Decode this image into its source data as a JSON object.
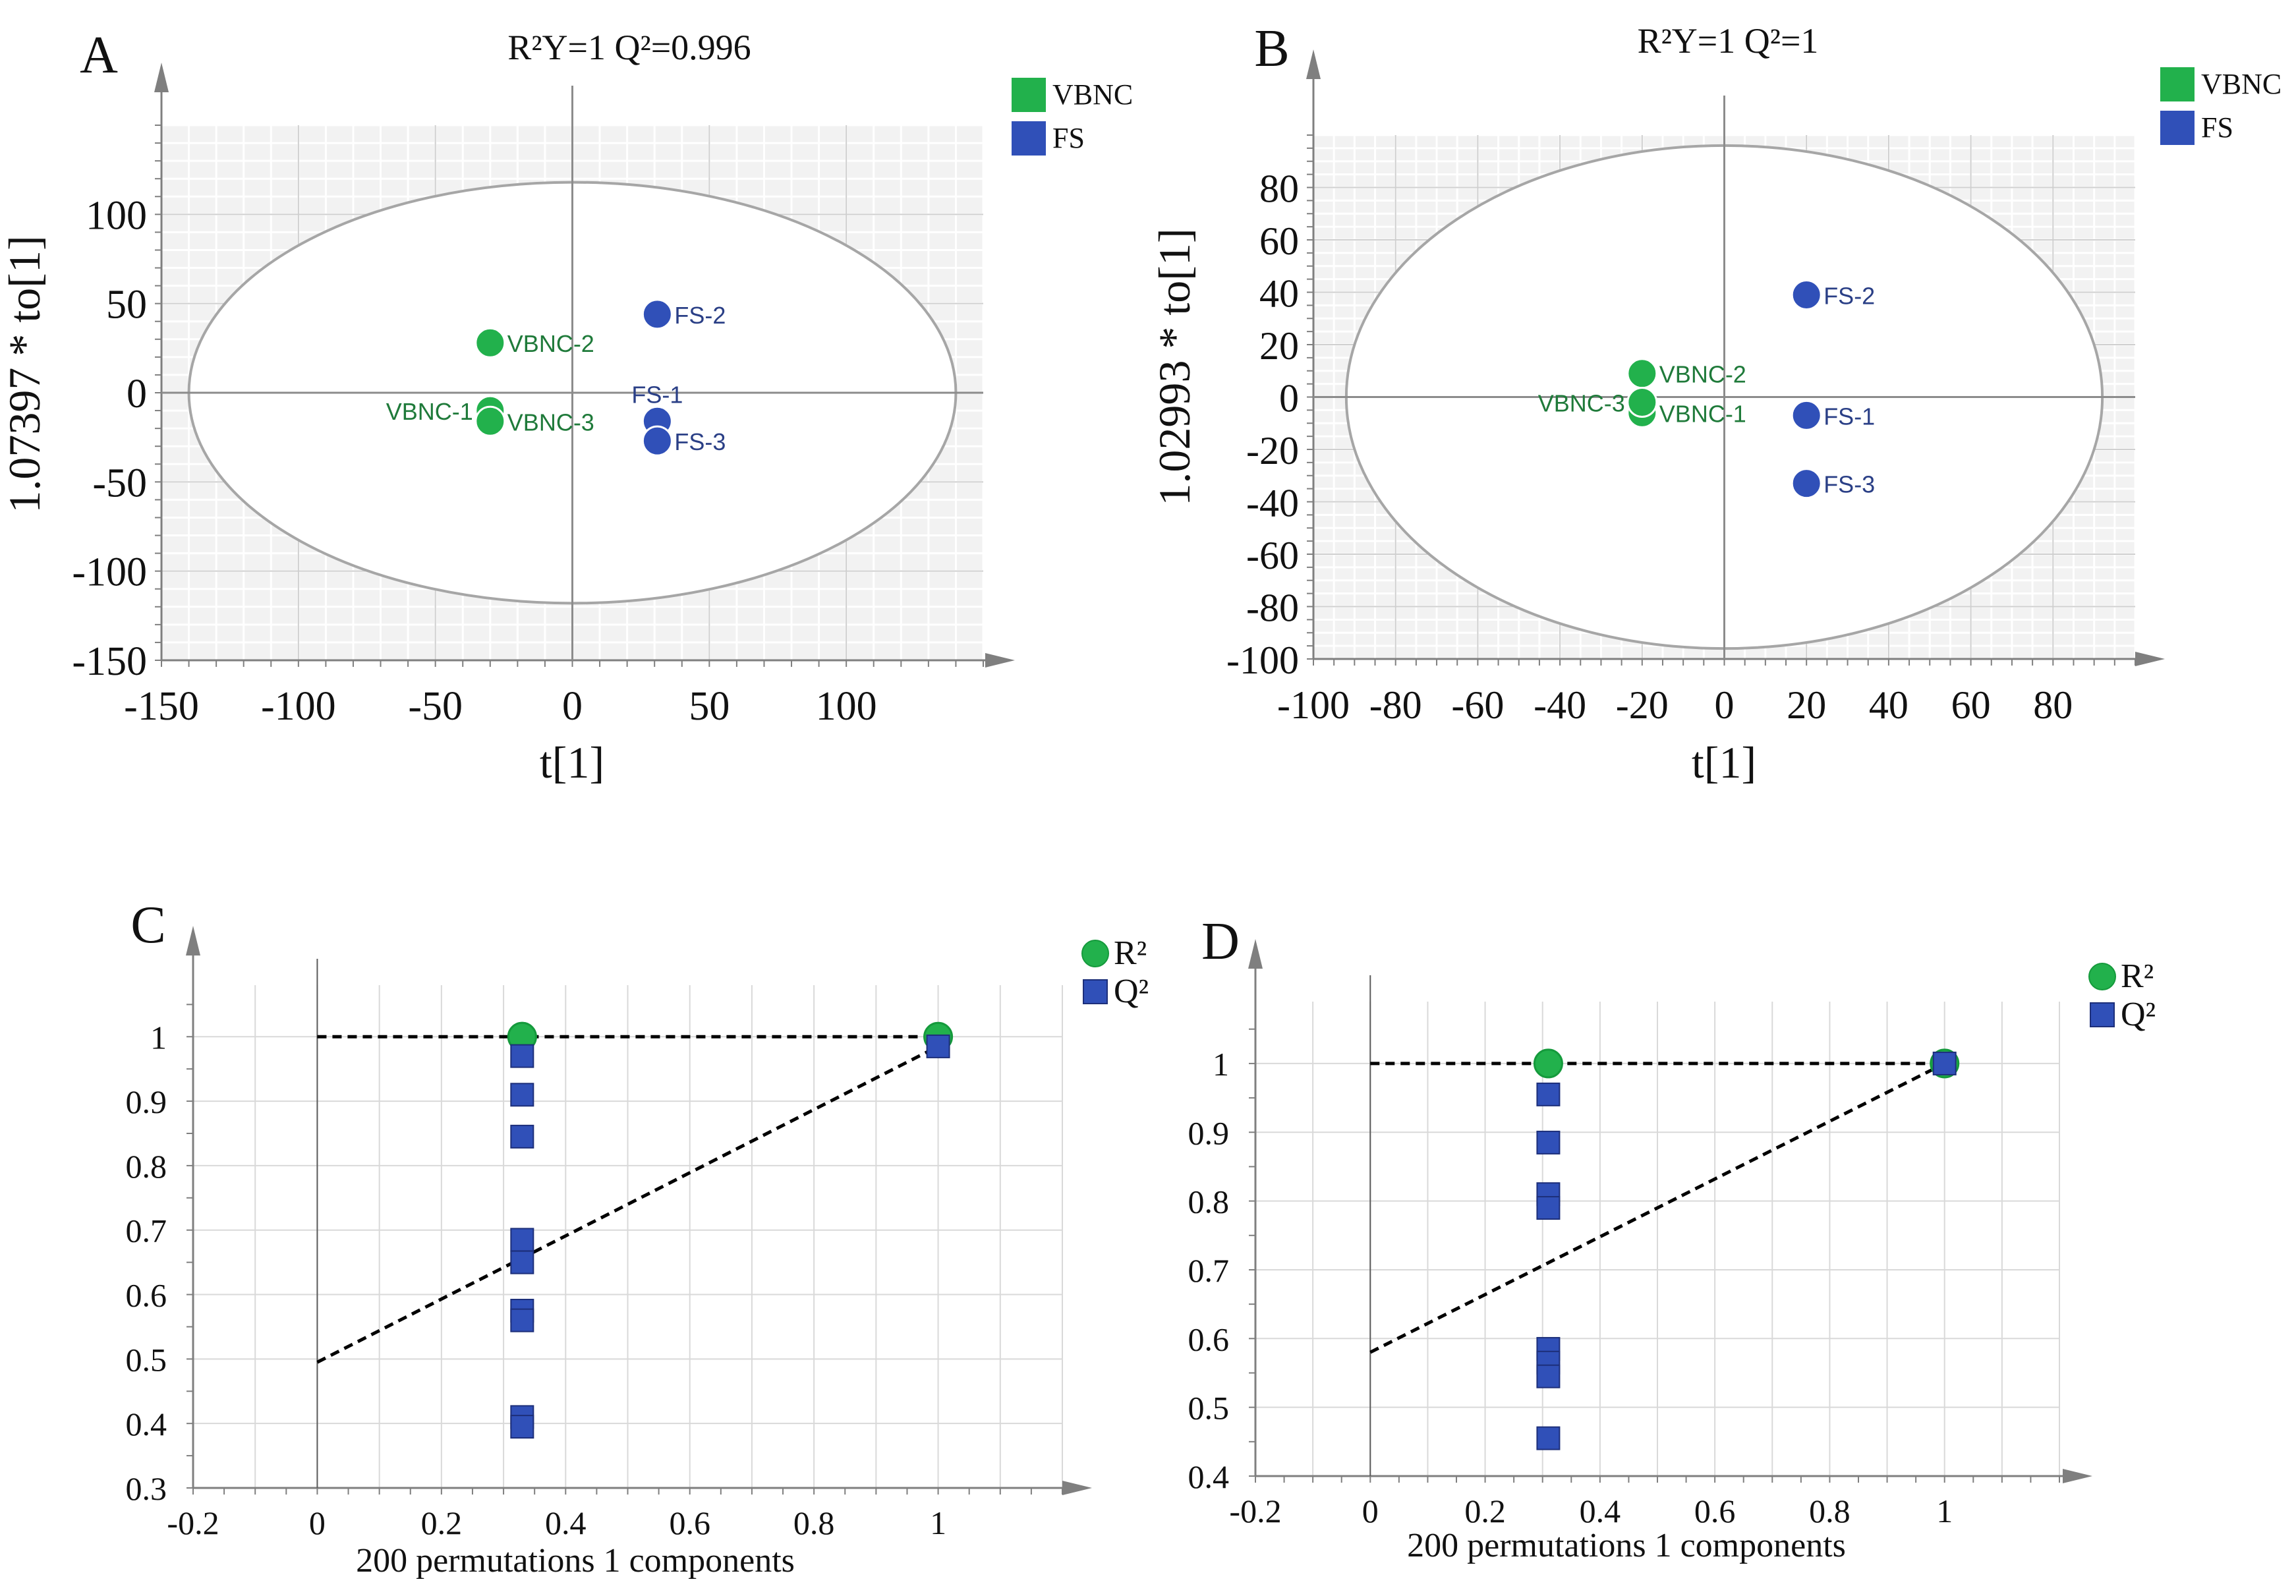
{
  "chart_data": [
    {
      "id": "A",
      "type": "scatter",
      "panel_label": "A",
      "title": "R²Y=1   Q²=0.996",
      "xlabel": "t[1]",
      "ylabel": "1.07397 * to[1]",
      "xlim": [
        -150,
        150
      ],
      "ylim": [
        -150,
        150
      ],
      "xticks": [
        -150,
        -100,
        -50,
        0,
        50,
        100
      ],
      "yticks": [
        -150,
        -100,
        -50,
        0,
        50,
        100
      ],
      "grid": true,
      "ellipse": {
        "rx": 140,
        "ry": 118
      },
      "legend": [
        {
          "label": "VBNC",
          "color": "#22b14c",
          "marker": "square"
        },
        {
          "label": "FS",
          "color": "#3050b8",
          "marker": "square"
        }
      ],
      "series": [
        {
          "name": "VBNC",
          "color": "#22b14c",
          "points": [
            {
              "label": "VBNC-1",
              "x": -30,
              "y": -10,
              "label_pos": "left"
            },
            {
              "label": "VBNC-2",
              "x": -30,
              "y": 28,
              "label_pos": "right"
            },
            {
              "label": "VBNC-3",
              "x": -30,
              "y": -16,
              "label_pos": "right"
            }
          ]
        },
        {
          "name": "FS",
          "color": "#3050b8",
          "points": [
            {
              "label": "FS-1",
              "x": 31,
              "y": -16,
              "label_pos": "above"
            },
            {
              "label": "FS-2",
              "x": 31,
              "y": 44,
              "label_pos": "right"
            },
            {
              "label": "FS-3",
              "x": 31,
              "y": -27,
              "label_pos": "right"
            }
          ]
        }
      ]
    },
    {
      "id": "B",
      "type": "scatter",
      "panel_label": "B",
      "title": "R²Y=1   Q²=1",
      "xlabel": "t[1]",
      "ylabel": "1.02993 * to[1]",
      "xlim": [
        -100,
        100
      ],
      "ylim": [
        -100,
        100
      ],
      "xticks": [
        -100,
        -80,
        -60,
        -40,
        -20,
        0,
        20,
        40,
        60,
        80
      ],
      "yticks": [
        -100,
        -80,
        -60,
        -40,
        -20,
        0,
        20,
        40,
        60,
        80
      ],
      "grid": true,
      "ellipse": {
        "rx": 92,
        "ry": 96
      },
      "legend": [
        {
          "label": "VBNC",
          "color": "#22b14c",
          "marker": "square"
        },
        {
          "label": "FS",
          "color": "#3050b8",
          "marker": "square"
        }
      ],
      "series": [
        {
          "name": "VBNC",
          "color": "#22b14c",
          "points": [
            {
              "label": "VBNC-1",
              "x": -20,
              "y": -6,
              "label_pos": "right"
            },
            {
              "label": "VBNC-2",
              "x": -20,
              "y": 9,
              "label_pos": "right"
            },
            {
              "label": "VBNC-3",
              "x": -20,
              "y": -2,
              "label_pos": "left"
            }
          ]
        },
        {
          "name": "FS",
          "color": "#3050b8",
          "points": [
            {
              "label": "FS-1",
              "x": 20,
              "y": -7,
              "label_pos": "right"
            },
            {
              "label": "FS-2",
              "x": 20,
              "y": 39,
              "label_pos": "right"
            },
            {
              "label": "FS-3",
              "x": 20,
              "y": -33,
              "label_pos": "right"
            }
          ]
        }
      ]
    },
    {
      "id": "C",
      "type": "scatter",
      "panel_label": "C",
      "title": "",
      "xlabel": "200 permutations 1 components",
      "ylabel": "",
      "xlim": [
        -0.2,
        1.2
      ],
      "ylim": [
        0.3,
        1.08
      ],
      "xticks": [
        -0.2,
        0,
        0.2,
        0.4,
        0.6,
        0.8,
        1
      ],
      "yticks": [
        0.3,
        0.4,
        0.5,
        0.6,
        0.7,
        0.8,
        0.9,
        1
      ],
      "grid": true,
      "legend": [
        {
          "label": "R²",
          "color": "#22b14c",
          "marker": "circle"
        },
        {
          "label": "Q²",
          "color": "#3050b8",
          "marker": "square"
        }
      ],
      "series": [
        {
          "name": "R2",
          "color": "#22b14c",
          "marker": "circle",
          "x": [
            0.33,
            0.33,
            1
          ],
          "y": [
            1,
            1,
            1
          ]
        },
        {
          "name": "Q2",
          "color": "#3050b8",
          "marker": "square",
          "x": [
            0.33,
            0.33,
            0.33,
            0.33,
            0.33,
            0.33,
            0.33,
            0.33,
            0.33,
            1
          ],
          "y": [
            0.97,
            0.91,
            0.845,
            0.685,
            0.65,
            0.575,
            0.56,
            0.41,
            0.395,
            0.985
          ]
        }
      ],
      "lines": [
        {
          "name": "R2 fit",
          "x": [
            0,
            1
          ],
          "y": [
            1,
            1
          ]
        },
        {
          "name": "Q2 fit",
          "x": [
            0,
            1
          ],
          "y": [
            0.495,
            0.985
          ]
        }
      ]
    },
    {
      "id": "D",
      "type": "scatter",
      "panel_label": "D",
      "title": "",
      "xlabel": "200 permutations 1 components",
      "ylabel": "",
      "xlim": [
        -0.2,
        1.2
      ],
      "ylim": [
        0.4,
        1.09
      ],
      "xticks": [
        -0.2,
        0,
        0.2,
        0.4,
        0.6,
        0.8,
        1
      ],
      "yticks": [
        0.4,
        0.5,
        0.6,
        0.7,
        0.8,
        0.9,
        1
      ],
      "grid": true,
      "legend": [
        {
          "label": "R²",
          "color": "#22b14c",
          "marker": "circle"
        },
        {
          "label": "Q²",
          "color": "#3050b8",
          "marker": "square"
        }
      ],
      "series": [
        {
          "name": "R2",
          "color": "#22b14c",
          "marker": "circle",
          "x": [
            0.31,
            1
          ],
          "y": [
            1,
            1
          ]
        },
        {
          "name": "Q2",
          "color": "#3050b8",
          "marker": "square",
          "x": [
            0.31,
            0.31,
            0.31,
            0.31,
            0.31,
            0.31,
            0.31,
            0.31,
            1
          ],
          "y": [
            0.955,
            0.885,
            0.81,
            0.79,
            0.585,
            0.565,
            0.545,
            0.455,
            1
          ]
        }
      ],
      "lines": [
        {
          "name": "R2 fit",
          "x": [
            0,
            1
          ],
          "y": [
            1,
            1
          ]
        },
        {
          "name": "Q2 fit",
          "x": [
            0,
            1
          ],
          "y": [
            0.58,
            1
          ]
        }
      ]
    }
  ]
}
